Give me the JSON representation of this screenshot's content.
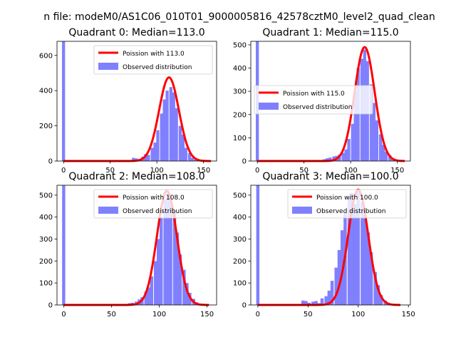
{
  "figure": {
    "suptitle": "n file: modeM0/AS1C06_010T01_9000005816_42578cztM0_level2_quad_clean"
  },
  "colors": {
    "poisson_line": "#ff0000",
    "histogram": "#8080ff",
    "axis": "#000000",
    "background": "#ffffff"
  },
  "legend_labels": {
    "observed": "Observed distribution"
  },
  "chart_data": [
    {
      "type": "bar",
      "title": "Quadrant 0: Median=113.0",
      "xlim": [
        -7,
        164
      ],
      "ylim": [
        0,
        680
      ],
      "xticks": [
        0,
        50,
        100,
        150
      ],
      "yticks": [
        0,
        200,
        400,
        600
      ],
      "legend_position": "upper-right",
      "bin_width": 3.3,
      "zero_bin": {
        "x": 0,
        "value": 680
      },
      "histogram": [
        {
          "x": 68,
          "value": 3
        },
        {
          "x": 71,
          "value": 3
        },
        {
          "x": 75,
          "value": 18
        },
        {
          "x": 78,
          "value": 15
        },
        {
          "x": 81,
          "value": 10
        },
        {
          "x": 85,
          "value": 25
        },
        {
          "x": 88,
          "value": 40
        },
        {
          "x": 91,
          "value": 35
        },
        {
          "x": 95,
          "value": 75
        },
        {
          "x": 98,
          "value": 105
        },
        {
          "x": 101,
          "value": 175
        },
        {
          "x": 105,
          "value": 270
        },
        {
          "x": 108,
          "value": 350
        },
        {
          "x": 111,
          "value": 400
        },
        {
          "x": 115,
          "value": 420
        },
        {
          "x": 118,
          "value": 390
        },
        {
          "x": 121,
          "value": 300
        },
        {
          "x": 125,
          "value": 200
        },
        {
          "x": 128,
          "value": 150
        },
        {
          "x": 131,
          "value": 75
        },
        {
          "x": 135,
          "value": 45
        },
        {
          "x": 138,
          "value": 18
        },
        {
          "x": 141,
          "value": 8
        },
        {
          "x": 145,
          "value": 4
        }
      ],
      "poisson": {
        "label": "Poission with 113.0",
        "mean": 113.0,
        "amplitude": 475,
        "x_range": [
          0,
          158
        ]
      }
    },
    {
      "type": "bar",
      "title": "Quadrant 1: Median=115.0",
      "xlim": [
        -7,
        164
      ],
      "ylim": [
        0,
        515
      ],
      "xticks": [
        0,
        50,
        100,
        150
      ],
      "yticks": [
        0,
        100,
        200,
        300,
        400,
        500
      ],
      "legend_position": "center-right",
      "bin_width": 3.3,
      "zero_bin": {
        "x": 0,
        "value": 515
      },
      "histogram": [
        {
          "x": 65,
          "value": 2
        },
        {
          "x": 68,
          "value": 3
        },
        {
          "x": 72,
          "value": 8
        },
        {
          "x": 75,
          "value": 12
        },
        {
          "x": 78,
          "value": 15
        },
        {
          "x": 82,
          "value": 20
        },
        {
          "x": 85,
          "value": 22
        },
        {
          "x": 88,
          "value": 28
        },
        {
          "x": 92,
          "value": 35
        },
        {
          "x": 95,
          "value": 50
        },
        {
          "x": 98,
          "value": 95
        },
        {
          "x": 102,
          "value": 160
        },
        {
          "x": 105,
          "value": 300
        },
        {
          "x": 108,
          "value": 400
        },
        {
          "x": 112,
          "value": 440
        },
        {
          "x": 115,
          "value": 480
        },
        {
          "x": 118,
          "value": 430
        },
        {
          "x": 122,
          "value": 330
        },
        {
          "x": 125,
          "value": 250
        },
        {
          "x": 128,
          "value": 175
        },
        {
          "x": 132,
          "value": 115
        },
        {
          "x": 135,
          "value": 70
        },
        {
          "x": 138,
          "value": 40
        },
        {
          "x": 142,
          "value": 25
        },
        {
          "x": 145,
          "value": 12
        },
        {
          "x": 148,
          "value": 5
        }
      ],
      "poisson": {
        "label": "Poission with 115.0",
        "mean": 115.0,
        "amplitude": 490,
        "x_range": [
          0,
          158
        ]
      }
    },
    {
      "type": "bar",
      "title": "Quadrant 2: Median=108.0",
      "xlim": [
        -7,
        160
      ],
      "ylim": [
        0,
        545
      ],
      "xticks": [
        0,
        50,
        100,
        150
      ],
      "yticks": [
        0,
        100,
        200,
        300,
        400,
        500
      ],
      "legend_position": "upper-right",
      "bin_width": 3.3,
      "zero_bin": {
        "x": 0,
        "value": 545
      },
      "histogram": [
        {
          "x": 62,
          "value": 3
        },
        {
          "x": 66,
          "value": 5
        },
        {
          "x": 69,
          "value": 8
        },
        {
          "x": 72,
          "value": 10
        },
        {
          "x": 76,
          "value": 15
        },
        {
          "x": 79,
          "value": 25
        },
        {
          "x": 82,
          "value": 35
        },
        {
          "x": 86,
          "value": 60
        },
        {
          "x": 89,
          "value": 80
        },
        {
          "x": 92,
          "value": 130
        },
        {
          "x": 96,
          "value": 200
        },
        {
          "x": 99,
          "value": 300
        },
        {
          "x": 102,
          "value": 400
        },
        {
          "x": 106,
          "value": 480
        },
        {
          "x": 109,
          "value": 510
        },
        {
          "x": 112,
          "value": 490
        },
        {
          "x": 116,
          "value": 430
        },
        {
          "x": 119,
          "value": 330
        },
        {
          "x": 122,
          "value": 230
        },
        {
          "x": 126,
          "value": 160
        },
        {
          "x": 129,
          "value": 100
        },
        {
          "x": 132,
          "value": 55
        },
        {
          "x": 136,
          "value": 28
        },
        {
          "x": 139,
          "value": 12
        },
        {
          "x": 142,
          "value": 5
        }
      ],
      "poisson": {
        "label": "Poission with 108.0",
        "mean": 108.0,
        "amplitude": 520,
        "x_range": [
          0,
          152
        ]
      }
    },
    {
      "type": "bar",
      "title": "Quadrant 3: Median=100.0",
      "xlim": [
        -7,
        152
      ],
      "ylim": [
        0,
        545
      ],
      "xticks": [
        0,
        50,
        100,
        150
      ],
      "yticks": [
        0,
        100,
        200,
        300,
        400,
        500
      ],
      "legend_position": "upper-right",
      "bin_width": 3.2,
      "zero_bin": {
        "x": 0,
        "value": 545
      },
      "histogram": [
        {
          "x": 42,
          "value": 5
        },
        {
          "x": 45,
          "value": 20
        },
        {
          "x": 48,
          "value": 18
        },
        {
          "x": 51,
          "value": 10
        },
        {
          "x": 55,
          "value": 15
        },
        {
          "x": 58,
          "value": 18
        },
        {
          "x": 61,
          "value": 8
        },
        {
          "x": 64,
          "value": 30
        },
        {
          "x": 68,
          "value": 40
        },
        {
          "x": 71,
          "value": 65
        },
        {
          "x": 74,
          "value": 110
        },
        {
          "x": 78,
          "value": 170
        },
        {
          "x": 81,
          "value": 250
        },
        {
          "x": 84,
          "value": 340
        },
        {
          "x": 87,
          "value": 420
        },
        {
          "x": 91,
          "value": 490
        },
        {
          "x": 94,
          "value": 510
        },
        {
          "x": 97,
          "value": 460
        },
        {
          "x": 100,
          "value": 520
        },
        {
          "x": 104,
          "value": 470
        },
        {
          "x": 107,
          "value": 410
        },
        {
          "x": 110,
          "value": 330
        },
        {
          "x": 113,
          "value": 240
        },
        {
          "x": 117,
          "value": 150
        },
        {
          "x": 120,
          "value": 90
        },
        {
          "x": 123,
          "value": 45
        },
        {
          "x": 127,
          "value": 20
        },
        {
          "x": 130,
          "value": 8
        }
      ],
      "poisson": {
        "label": "Poission with 100.0",
        "mean": 100.0,
        "amplitude": 525,
        "x_range": [
          0,
          142
        ]
      }
    }
  ]
}
